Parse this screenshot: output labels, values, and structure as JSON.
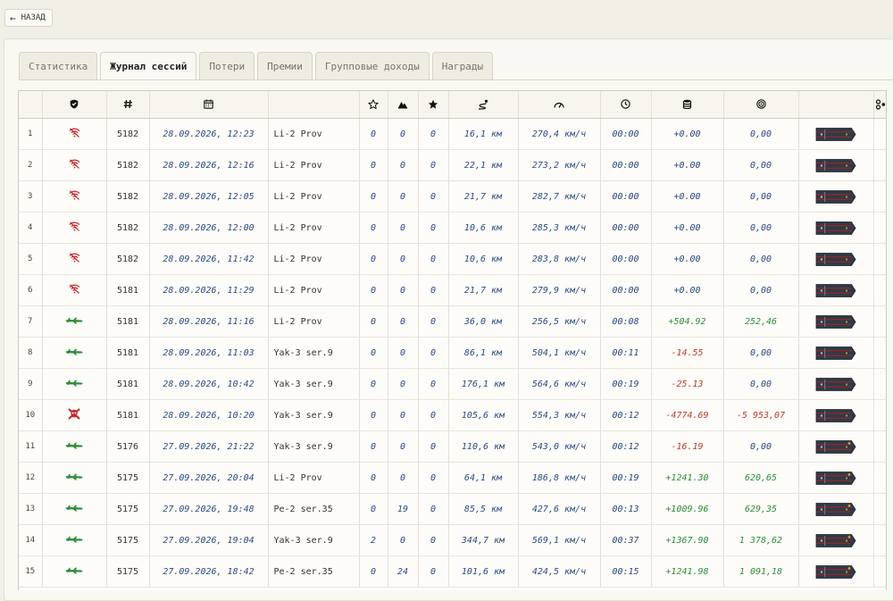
{
  "back_button": {
    "label": "НАЗАД",
    "icon": "arrow-left-icon"
  },
  "tabs": [
    {
      "label": "Статистика",
      "active": false
    },
    {
      "label": "Журнал сессий",
      "active": true
    },
    {
      "label": "Потери",
      "active": false
    },
    {
      "label": "Премии",
      "active": false
    },
    {
      "label": "Групповые доходы",
      "active": false
    },
    {
      "label": "Награды",
      "active": false
    }
  ],
  "header_icons": [
    "shield-icon",
    "hash-icon",
    "calendar-icon",
    "",
    "star-outline-icon",
    "mountains-icon",
    "star-icon",
    "distance-icon",
    "speedometer-icon",
    "clock-icon",
    "coins-stack-icon",
    "target-icon",
    "",
    "settings-icon"
  ],
  "colors": {
    "positive": "#2e8c3a",
    "negative": "#c0392b",
    "value": "#2c4a86",
    "status_lost": "#c62828",
    "status_landed": "#2e8c3a"
  },
  "rows": [
    {
      "n": "1",
      "status": "wifi-off-icon",
      "id": "5182",
      "date": "28.09.2026, 12:23",
      "aircraft": "Li-2 Prov",
      "c1": "0",
      "c2": "0",
      "c3": "0",
      "distance": "16,1 км",
      "speed": "270,4 км/ч",
      "time": "00:00",
      "income": "+0.00",
      "income_sign": "zero",
      "score": "0,00",
      "score_sign": "zero",
      "rank_icon": "shoulder-strap-icon"
    },
    {
      "n": "2",
      "status": "wifi-off-icon",
      "id": "5182",
      "date": "28.09.2026, 12:16",
      "aircraft": "Li-2 Prov",
      "c1": "0",
      "c2": "0",
      "c3": "0",
      "distance": "22,1 км",
      "speed": "273,2 км/ч",
      "time": "00:00",
      "income": "+0.00",
      "income_sign": "zero",
      "score": "0,00",
      "score_sign": "zero",
      "rank_icon": "shoulder-strap-icon"
    },
    {
      "n": "3",
      "status": "wifi-off-icon",
      "id": "5182",
      "date": "28.09.2026, 12:05",
      "aircraft": "Li-2 Prov",
      "c1": "0",
      "c2": "0",
      "c3": "0",
      "distance": "21,7 км",
      "speed": "282,7 км/ч",
      "time": "00:00",
      "income": "+0.00",
      "income_sign": "zero",
      "score": "0,00",
      "score_sign": "zero",
      "rank_icon": "shoulder-strap-icon"
    },
    {
      "n": "4",
      "status": "wifi-off-icon",
      "id": "5182",
      "date": "28.09.2026, 12:00",
      "aircraft": "Li-2 Prov",
      "c1": "0",
      "c2": "0",
      "c3": "0",
      "distance": "10,6 км",
      "speed": "285,3 км/ч",
      "time": "00:00",
      "income": "+0.00",
      "income_sign": "zero",
      "score": "0,00",
      "score_sign": "zero",
      "rank_icon": "shoulder-strap-icon"
    },
    {
      "n": "5",
      "status": "wifi-off-icon",
      "id": "5182",
      "date": "28.09.2026, 11:42",
      "aircraft": "Li-2 Prov",
      "c1": "0",
      "c2": "0",
      "c3": "0",
      "distance": "10,6 км",
      "speed": "283,8 км/ч",
      "time": "00:00",
      "income": "+0.00",
      "income_sign": "zero",
      "score": "0,00",
      "score_sign": "zero",
      "rank_icon": "shoulder-strap-icon"
    },
    {
      "n": "6",
      "status": "wifi-off-icon",
      "id": "5181",
      "date": "28.09.2026, 11:29",
      "aircraft": "Li-2 Prov",
      "c1": "0",
      "c2": "0",
      "c3": "0",
      "distance": "21,7 км",
      "speed": "279,9 км/ч",
      "time": "00:00",
      "income": "+0.00",
      "income_sign": "zero",
      "score": "0,00",
      "score_sign": "zero",
      "rank_icon": "shoulder-strap-icon"
    },
    {
      "n": "7",
      "status": "plane-landed-icon",
      "id": "5181",
      "date": "28.09.2026, 11:16",
      "aircraft": "Li-2 Prov",
      "c1": "0",
      "c2": "0",
      "c3": "0",
      "distance": "36,0 км",
      "speed": "256,5 км/ч",
      "time": "00:08",
      "income": "+504.92",
      "income_sign": "pos",
      "score": "252,46",
      "score_sign": "pos",
      "rank_icon": "shoulder-strap-icon"
    },
    {
      "n": "8",
      "status": "plane-landed-icon",
      "id": "5181",
      "date": "28.09.2026, 11:03",
      "aircraft": "Yak-3 ser.9",
      "c1": "0",
      "c2": "0",
      "c3": "0",
      "distance": "86,1 км",
      "speed": "504,1 км/ч",
      "time": "00:11",
      "income": "-14.55",
      "income_sign": "neg",
      "score": "0,00",
      "score_sign": "zero",
      "rank_icon": "shoulder-strap-icon"
    },
    {
      "n": "9",
      "status": "plane-landed-icon",
      "id": "5181",
      "date": "28.09.2026, 10:42",
      "aircraft": "Yak-3 ser.9",
      "c1": "0",
      "c2": "0",
      "c3": "0",
      "distance": "176,1 км",
      "speed": "564,6 км/ч",
      "time": "00:19",
      "income": "-25.13",
      "income_sign": "neg",
      "score": "0,00",
      "score_sign": "zero",
      "rank_icon": "shoulder-strap-icon"
    },
    {
      "n": "10",
      "status": "skull-icon",
      "id": "5181",
      "date": "28.09.2026, 10:20",
      "aircraft": "Yak-3 ser.9",
      "c1": "0",
      "c2": "0",
      "c3": "0",
      "distance": "105,6 км",
      "speed": "554,3 км/ч",
      "time": "00:12",
      "income": "-4774.69",
      "income_sign": "neg",
      "score": "-5 953,07",
      "score_sign": "neg",
      "rank_icon": "shoulder-strap-icon"
    },
    {
      "n": "11",
      "status": "plane-landed-icon",
      "id": "5176",
      "date": "27.09.2026, 21:22",
      "aircraft": "Yak-3 ser.9",
      "c1": "0",
      "c2": "0",
      "c3": "0",
      "distance": "110,6 км",
      "speed": "543,0 км/ч",
      "time": "00:12",
      "income": "-16.19",
      "income_sign": "neg",
      "score": "0,00",
      "score_sign": "zero",
      "rank_icon": "shoulder-strap-star-icon"
    },
    {
      "n": "12",
      "status": "plane-landed-icon",
      "id": "5175",
      "date": "27.09.2026, 20:04",
      "aircraft": "Li-2 Prov",
      "c1": "0",
      "c2": "0",
      "c3": "0",
      "distance": "64,1 км",
      "speed": "186,8 км/ч",
      "time": "00:19",
      "income": "+1241.30",
      "income_sign": "pos",
      "score": "620,65",
      "score_sign": "pos",
      "rank_icon": "shoulder-strap-star-icon"
    },
    {
      "n": "13",
      "status": "plane-landed-icon",
      "id": "5175",
      "date": "27.09.2026, 19:48",
      "aircraft": "Pe-2 ser.35",
      "c1": "0",
      "c2": "19",
      "c3": "0",
      "distance": "85,5 км",
      "speed": "427,6 км/ч",
      "time": "00:13",
      "income": "+1009.96",
      "income_sign": "pos",
      "score": "629,35",
      "score_sign": "pos",
      "rank_icon": "shoulder-strap-star-icon"
    },
    {
      "n": "14",
      "status": "plane-landed-icon",
      "id": "5175",
      "date": "27.09.2026, 19:04",
      "aircraft": "Yak-3 ser.9",
      "c1": "2",
      "c2": "0",
      "c3": "0",
      "distance": "344,7 км",
      "speed": "569,1 км/ч",
      "time": "00:37",
      "income": "+1367.90",
      "income_sign": "pos",
      "score": "1 378,62",
      "score_sign": "pos",
      "rank_icon": "shoulder-strap-star-icon"
    },
    {
      "n": "15",
      "status": "plane-landed-icon",
      "id": "5175",
      "date": "27.09.2026, 18:42",
      "aircraft": "Pe-2 ser.35",
      "c1": "0",
      "c2": "24",
      "c3": "0",
      "distance": "101,6 км",
      "speed": "424,5 км/ч",
      "time": "00:15",
      "income": "+1241.98",
      "income_sign": "pos",
      "score": "1 091,18",
      "score_sign": "pos",
      "rank_icon": "shoulder-strap-star-icon"
    }
  ]
}
